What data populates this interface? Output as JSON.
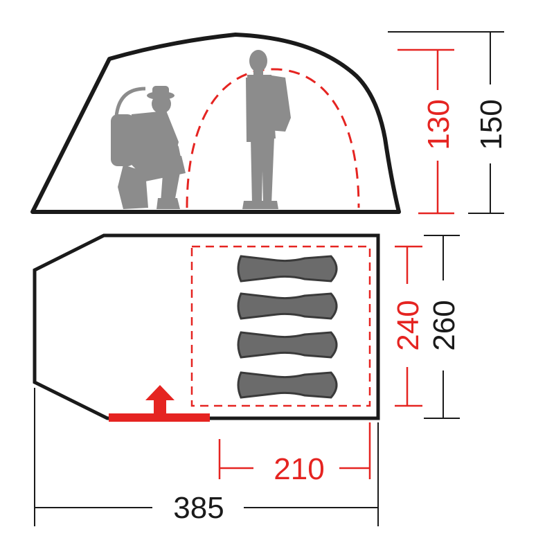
{
  "colors": {
    "outline": "#1a1a1a",
    "accent_red": "#e52421",
    "figure_gray": "#8c8c8c",
    "bag_gray": "#6b6b6b",
    "bag_outline": "#3a3a3a",
    "floor_fill": "#ffffff"
  },
  "side_view": {
    "inner_height_label": "130",
    "outer_height_label": "150",
    "figures": [
      "crouching-person-with-backpack",
      "standing-person-with-backpack"
    ]
  },
  "floor_plan": {
    "inner_width_label": "240",
    "outer_width_label": "260",
    "inner_length_label": "210",
    "outer_length_label": "385",
    "sleeping_bag_count": 4,
    "entrance_icon": "up-arrow-icon"
  }
}
